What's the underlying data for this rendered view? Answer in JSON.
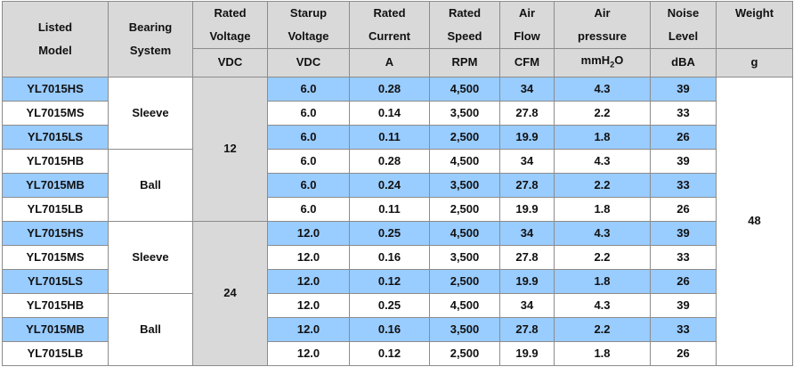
{
  "table": {
    "headers": {
      "model": [
        "Listed",
        "Model"
      ],
      "bearing": [
        "Bearing",
        "System"
      ],
      "voltage": [
        "Rated",
        "Voltage"
      ],
      "startup": [
        "Starup",
        "Voltage"
      ],
      "current": [
        "Rated",
        "Current"
      ],
      "speed": [
        "Rated",
        "Speed"
      ],
      "airflow": [
        "Air",
        "Flow"
      ],
      "pressure": [
        "Air",
        "pressure"
      ],
      "noise": [
        "Noise",
        "Level"
      ],
      "weight": "Weight"
    },
    "units": {
      "voltage": "VDC",
      "startup": "VDC",
      "current": "A",
      "speed": "RPM",
      "airflow": "CFM",
      "pressure": "mmH",
      "pressure_sub": "2",
      "pressure_tail": "O",
      "noise": "dBA",
      "weight": "g"
    },
    "groups": {
      "bearing": [
        "Sleeve",
        "Ball",
        "Sleeve",
        "Ball"
      ],
      "voltage": [
        "12",
        "24"
      ],
      "weight": "48"
    },
    "rows": [
      {
        "model": "YL7015HS",
        "startup": "6.0",
        "current": "0.28",
        "speed": "4,500",
        "airflow": "34",
        "pressure": "4.3",
        "noise": "39"
      },
      {
        "model": "YL7015MS",
        "startup": "6.0",
        "current": "0.14",
        "speed": "3,500",
        "airflow": "27.8",
        "pressure": "2.2",
        "noise": "33"
      },
      {
        "model": "YL7015LS",
        "startup": "6.0",
        "current": "0.11",
        "speed": "2,500",
        "airflow": "19.9",
        "pressure": "1.8",
        "noise": "26"
      },
      {
        "model": "YL7015HB",
        "startup": "6.0",
        "current": "0.28",
        "speed": "4,500",
        "airflow": "34",
        "pressure": "4.3",
        "noise": "39"
      },
      {
        "model": "YL7015MB",
        "startup": "6.0",
        "current": "0.24",
        "speed": "3,500",
        "airflow": "27.8",
        "pressure": "2.2",
        "noise": "33"
      },
      {
        "model": "YL7015LB",
        "startup": "6.0",
        "current": "0.11",
        "speed": "2,500",
        "airflow": "19.9",
        "pressure": "1.8",
        "noise": "26"
      },
      {
        "model": "YL7015HS",
        "startup": "12.0",
        "current": "0.25",
        "speed": "4,500",
        "airflow": "34",
        "pressure": "4.3",
        "noise": "39"
      },
      {
        "model": "YL7015MS",
        "startup": "12.0",
        "current": "0.16",
        "speed": "3,500",
        "airflow": "27.8",
        "pressure": "2.2",
        "noise": "33"
      },
      {
        "model": "YL7015LS",
        "startup": "12.0",
        "current": "0.12",
        "speed": "2,500",
        "airflow": "19.9",
        "pressure": "1.8",
        "noise": "26"
      },
      {
        "model": "YL7015HB",
        "startup": "12.0",
        "current": "0.25",
        "speed": "4,500",
        "airflow": "34",
        "pressure": "4.3",
        "noise": "39"
      },
      {
        "model": "YL7015MB",
        "startup": "12.0",
        "current": "0.16",
        "speed": "3,500",
        "airflow": "27.8",
        "pressure": "2.2",
        "noise": "33"
      },
      {
        "model": "YL7015LB",
        "startup": "12.0",
        "current": "0.12",
        "speed": "2,500",
        "airflow": "19.9",
        "pressure": "1.8",
        "noise": "26"
      }
    ],
    "colors": {
      "header_bg": "#d9d9d9",
      "highlight_row": "#99ccff",
      "plain_row": "#ffffff",
      "border": "#8c8c8c"
    }
  }
}
